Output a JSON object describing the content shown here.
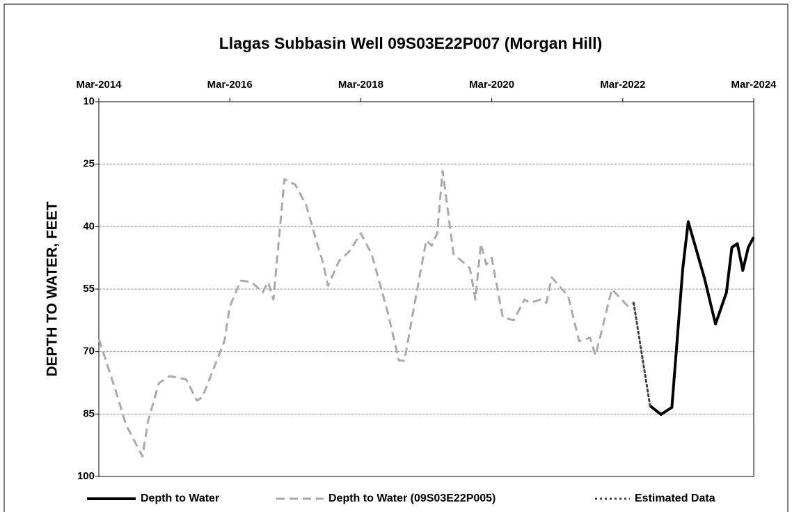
{
  "chart_data": {
    "type": "line",
    "title": "Llagas Subbasin Well  09S03E22P007    (Morgan Hill)",
    "y_label": "DEPTH TO WATER, FEET",
    "xlim": [
      "2014-03",
      "2024-03"
    ],
    "xticks": [
      {
        "value": "2014-03",
        "label": "Mar-2014"
      },
      {
        "value": "2016-03",
        "label": "Mar-2016"
      },
      {
        "value": "2018-03",
        "label": "Mar-2018"
      },
      {
        "value": "2020-03",
        "label": "Mar-2020"
      },
      {
        "value": "2022-03",
        "label": "Mar-2022"
      },
      {
        "value": "2024-03",
        "label": "Mar-2024"
      }
    ],
    "ylim": [
      10,
      100
    ],
    "y_inverted": true,
    "yticks": [
      10,
      25,
      40,
      55,
      70,
      85,
      100
    ],
    "grid": true,
    "legend": "bottom",
    "series": [
      {
        "name": "Depth to Water",
        "color": "#000000",
        "dash": "solid",
        "x": [
          "2022-08",
          "2022-10",
          "2022-12",
          "2023-02",
          "2023-03",
          "2023-06",
          "2023-08",
          "2023-10",
          "2023-11",
          "2023-12",
          "2024-01",
          "2024-02",
          "2024-03"
        ],
        "values": [
          83,
          85.1,
          83.4,
          50,
          38.8,
          52.5,
          63.4,
          55.8,
          45,
          44.1,
          50.5,
          45,
          42.5
        ]
      },
      {
        "name": "Depth to Water (09S03E22P005)",
        "color": "#aaaaaa",
        "dash": "dashed",
        "x": [
          "2014-03",
          "2014-06",
          "2014-08",
          "2014-11",
          "2014-12",
          "2015-02",
          "2015-04",
          "2015-07",
          "2015-09",
          "2015-10",
          "2016-02",
          "2016-03",
          "2016-05",
          "2016-07",
          "2016-09",
          "2016-10",
          "2016-11",
          "2017-01",
          "2017-03",
          "2017-05",
          "2017-07",
          "2017-08",
          "2017-09",
          "2017-11",
          "2018-01",
          "2018-03",
          "2018-05",
          "2018-08",
          "2018-10",
          "2018-11",
          "2019-01",
          "2019-03",
          "2019-04",
          "2019-05",
          "2019-06",
          "2019-08",
          "2019-10",
          "2019-11",
          "2019-12",
          "2020-01",
          "2020-02",
          "2020-03",
          "2020-05",
          "2020-07",
          "2020-09",
          "2020-10",
          "2020-12",
          "2021-01",
          "2021-02",
          "2021-05",
          "2021-07",
          "2021-09",
          "2021-10",
          "2021-11",
          "2022-01",
          "2022-04",
          "2022-05"
        ],
        "values": [
          67,
          79,
          87.6,
          95.2,
          86.8,
          77.6,
          75.9,
          76.7,
          81.8,
          80.9,
          67.5,
          59.2,
          53,
          53.3,
          55.8,
          53.3,
          57.5,
          28.6,
          29.9,
          34.9,
          44.1,
          48.3,
          54.2,
          48.3,
          45.8,
          41.6,
          46.6,
          60.9,
          72.2,
          72.2,
          57.5,
          43.3,
          44.6,
          41.6,
          26.6,
          46.6,
          48.8,
          50,
          57.5,
          44.1,
          49.1,
          47.5,
          61.7,
          62.5,
          57.5,
          58.3,
          57.5,
          58.3,
          52.2,
          56.7,
          67.5,
          66.7,
          70.9,
          65.8,
          55,
          59.2,
          58.3
        ]
      },
      {
        "name": "Estimated Data",
        "color": "#444444",
        "dash": "dotted",
        "x": [
          "2022-05",
          "2022-08"
        ],
        "values": [
          58.3,
          83
        ]
      }
    ]
  }
}
